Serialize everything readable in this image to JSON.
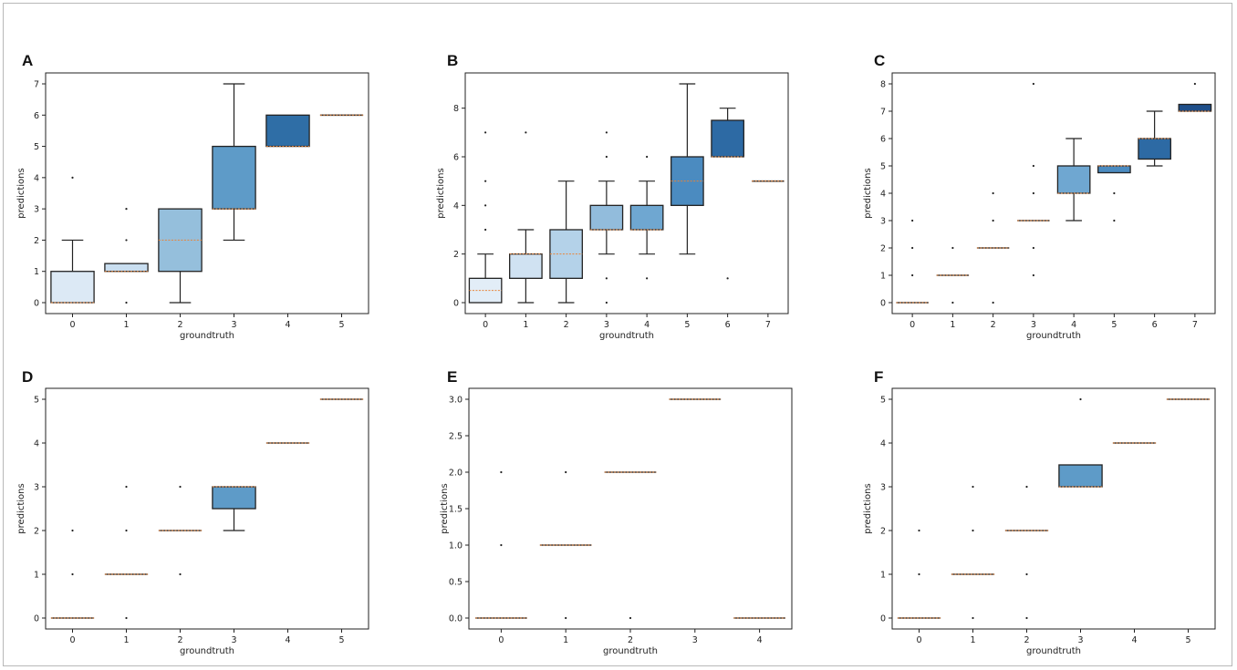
{
  "chart_data": [
    {
      "type": "box",
      "panel": "A",
      "xlabel": "groundtruth",
      "ylabel": "predictions",
      "ylim": [
        -0.35,
        7.35
      ],
      "yticks": [
        0,
        1,
        2,
        3,
        4,
        5,
        6,
        7
      ],
      "categories": [
        "0",
        "1",
        "2",
        "3",
        "4",
        "5"
      ],
      "boxes": [
        {
          "q1": 0,
          "median": 0,
          "q3": 1,
          "whislo": 0,
          "whishi": 2,
          "fliers": [
            4
          ],
          "color": "#dce9f5"
        },
        {
          "q1": 1,
          "median": 1,
          "q3": 1.25,
          "whislo": 1,
          "whishi": 1.25,
          "fliers": [
            0,
            2,
            3
          ],
          "color": "#c9def0"
        },
        {
          "q1": 1,
          "median": 2,
          "q3": 3,
          "whislo": 0,
          "whishi": 3,
          "fliers": [],
          "color": "#95bfdc"
        },
        {
          "q1": 3,
          "median": 3,
          "q3": 5,
          "whislo": 2,
          "whishi": 7,
          "fliers": [],
          "color": "#5e9bc8"
        },
        {
          "q1": 5,
          "median": 5,
          "q3": 6,
          "whislo": 5,
          "whishi": 6,
          "fliers": [],
          "color": "#2f6ea6"
        },
        {
          "q1": 6,
          "median": 6,
          "q3": 6,
          "whislo": 6,
          "whishi": 6,
          "fliers": [],
          "color": "#1f4f8a"
        }
      ]
    },
    {
      "type": "box",
      "panel": "B",
      "xlabel": "groundtruth",
      "ylabel": "predictions",
      "ylim": [
        -0.45,
        9.45
      ],
      "yticks": [
        0,
        2,
        4,
        6,
        8
      ],
      "categories": [
        "0",
        "1",
        "2",
        "3",
        "4",
        "5",
        "6",
        "7"
      ],
      "boxes": [
        {
          "q1": 0,
          "median": 0.5,
          "q3": 1,
          "whislo": 0,
          "whishi": 2,
          "fliers": [
            3,
            4,
            5,
            7
          ],
          "color": "#e2edf7"
        },
        {
          "q1": 1,
          "median": 2,
          "q3": 2,
          "whislo": 0,
          "whishi": 3,
          "fliers": [
            7
          ],
          "color": "#d0e2f2"
        },
        {
          "q1": 1,
          "median": 2,
          "q3": 3,
          "whislo": 0,
          "whishi": 5,
          "fliers": [],
          "color": "#b4d2e9"
        },
        {
          "q1": 3,
          "median": 3,
          "q3": 4,
          "whislo": 2,
          "whishi": 5,
          "fliers": [
            0,
            1,
            6,
            7
          ],
          "color": "#92bcdc"
        },
        {
          "q1": 3,
          "median": 3,
          "q3": 4,
          "whislo": 2,
          "whishi": 5,
          "fliers": [
            1,
            6
          ],
          "color": "#6fa7d1"
        },
        {
          "q1": 4,
          "median": 5,
          "q3": 6,
          "whislo": 2,
          "whishi": 9,
          "fliers": [],
          "color": "#4b8bc0"
        },
        {
          "q1": 6,
          "median": 6,
          "q3": 7.5,
          "whislo": 6,
          "whishi": 8,
          "fliers": [
            1
          ],
          "color": "#2d6aa4"
        },
        {
          "q1": 5,
          "median": 5,
          "q3": 5,
          "whislo": 5,
          "whishi": 5,
          "fliers": [],
          "color": "#1f4f8a"
        }
      ]
    },
    {
      "type": "box",
      "panel": "C",
      "xlabel": "groundtruth",
      "ylabel": "predictions",
      "ylim": [
        -0.4,
        8.4
      ],
      "yticks": [
        0,
        1,
        2,
        3,
        4,
        5,
        6,
        7,
        8
      ],
      "categories": [
        "0",
        "1",
        "2",
        "3",
        "4",
        "5",
        "6",
        "7"
      ],
      "boxes": [
        {
          "q1": 0,
          "median": 0,
          "q3": 0,
          "whislo": 0,
          "whishi": 0,
          "fliers": [
            1,
            2,
            3
          ],
          "color": "#e2edf7"
        },
        {
          "q1": 1,
          "median": 1,
          "q3": 1,
          "whislo": 1,
          "whishi": 1,
          "fliers": [
            0,
            2
          ],
          "color": "#d0e2f2"
        },
        {
          "q1": 2,
          "median": 2,
          "q3": 2,
          "whislo": 2,
          "whishi": 2,
          "fliers": [
            0,
            3,
            4
          ],
          "color": "#b4d2e9"
        },
        {
          "q1": 3,
          "median": 3,
          "q3": 3,
          "whislo": 3,
          "whishi": 3,
          "fliers": [
            1,
            2,
            4,
            5,
            8
          ],
          "color": "#92bcdc"
        },
        {
          "q1": 4,
          "median": 4,
          "q3": 5,
          "whislo": 3,
          "whishi": 6,
          "fliers": [],
          "color": "#6fa7d1"
        },
        {
          "q1": 4.75,
          "median": 5,
          "q3": 5,
          "whislo": 4.75,
          "whishi": 5,
          "fliers": [
            3,
            4
          ],
          "color": "#4b8bc0"
        },
        {
          "q1": 5.25,
          "median": 6,
          "q3": 6,
          "whislo": 5,
          "whishi": 7,
          "fliers": [],
          "color": "#2d6aa4"
        },
        {
          "q1": 7,
          "median": 7,
          "q3": 7.25,
          "whislo": 7,
          "whishi": 7.25,
          "fliers": [
            8
          ],
          "color": "#1f4f8a"
        }
      ]
    },
    {
      "type": "box",
      "panel": "D",
      "xlabel": "groundtruth",
      "ylabel": "predictions",
      "ylim": [
        -0.25,
        5.25
      ],
      "yticks": [
        0,
        1,
        2,
        3,
        4,
        5
      ],
      "categories": [
        "0",
        "1",
        "2",
        "3",
        "4",
        "5"
      ],
      "boxes": [
        {
          "q1": 0,
          "median": 0,
          "q3": 0,
          "whislo": 0,
          "whishi": 0,
          "fliers": [
            1,
            2
          ],
          "color": "#dce9f5"
        },
        {
          "q1": 1,
          "median": 1,
          "q3": 1,
          "whislo": 1,
          "whishi": 1,
          "fliers": [
            0,
            2,
            3
          ],
          "color": "#c9def0"
        },
        {
          "q1": 2,
          "median": 2,
          "q3": 2,
          "whislo": 2,
          "whishi": 2,
          "fliers": [
            1,
            3
          ],
          "color": "#95bfdc"
        },
        {
          "q1": 2.5,
          "median": 3,
          "q3": 3,
          "whislo": 2,
          "whishi": 3,
          "fliers": [],
          "color": "#5e9bc8"
        },
        {
          "q1": 4,
          "median": 4,
          "q3": 4,
          "whislo": 4,
          "whishi": 4,
          "fliers": [],
          "color": "#2f6ea6"
        },
        {
          "q1": 5,
          "median": 5,
          "q3": 5,
          "whislo": 5,
          "whishi": 5,
          "fliers": [],
          "color": "#1f4f8a"
        }
      ]
    },
    {
      "type": "box",
      "panel": "E",
      "xlabel": "groundtruth",
      "ylabel": "predictions",
      "ylim": [
        -0.15,
        3.15
      ],
      "yticks": [
        0,
        0.5,
        1,
        1.5,
        2,
        2.5,
        3
      ],
      "ytick_labels": [
        "0.0",
        "0.5",
        "1.0",
        "1.5",
        "2.0",
        "2.5",
        "3.0"
      ],
      "categories": [
        "0",
        "1",
        "2",
        "3",
        "4"
      ],
      "boxes": [
        {
          "q1": 0,
          "median": 0,
          "q3": 0,
          "whislo": 0,
          "whishi": 0,
          "fliers": [
            1,
            2
          ],
          "color": "#d6e6f4"
        },
        {
          "q1": 1,
          "median": 1,
          "q3": 1,
          "whislo": 1,
          "whishi": 1,
          "fliers": [
            0,
            2
          ],
          "color": "#a9cbe5"
        },
        {
          "q1": 2,
          "median": 2,
          "q3": 2,
          "whislo": 2,
          "whishi": 2,
          "fliers": [
            0
          ],
          "color": "#6fa7d1"
        },
        {
          "q1": 3,
          "median": 3,
          "q3": 3,
          "whislo": 3,
          "whishi": 3,
          "fliers": [],
          "color": "#3a7cb8"
        },
        {
          "q1": 0,
          "median": 0,
          "q3": 0,
          "whislo": 0,
          "whishi": 0,
          "fliers": [],
          "color": "#1f4f8a"
        }
      ]
    },
    {
      "type": "box",
      "panel": "F",
      "xlabel": "groundtruth",
      "ylabel": "predictions",
      "ylim": [
        -0.25,
        5.25
      ],
      "yticks": [
        0,
        1,
        2,
        3,
        4,
        5
      ],
      "categories": [
        "0",
        "1",
        "2",
        "3",
        "4",
        "5"
      ],
      "boxes": [
        {
          "q1": 0,
          "median": 0,
          "q3": 0,
          "whislo": 0,
          "whishi": 0,
          "fliers": [
            1,
            2
          ],
          "color": "#dce9f5"
        },
        {
          "q1": 1,
          "median": 1,
          "q3": 1,
          "whislo": 1,
          "whishi": 1,
          "fliers": [
            0,
            2,
            3
          ],
          "color": "#c9def0"
        },
        {
          "q1": 2,
          "median": 2,
          "q3": 2,
          "whislo": 2,
          "whishi": 2,
          "fliers": [
            0,
            1,
            3
          ],
          "color": "#95bfdc"
        },
        {
          "q1": 3,
          "median": 3,
          "q3": 3.5,
          "whislo": 3,
          "whishi": 3.5,
          "fliers": [
            5
          ],
          "color": "#5e9bc8"
        },
        {
          "q1": 4,
          "median": 4,
          "q3": 4,
          "whislo": 4,
          "whishi": 4,
          "fliers": [],
          "color": "#2f6ea6"
        },
        {
          "q1": 5,
          "median": 5,
          "q3": 5,
          "whislo": 5,
          "whishi": 5,
          "fliers": [],
          "color": "#1f4f8a"
        }
      ]
    }
  ]
}
